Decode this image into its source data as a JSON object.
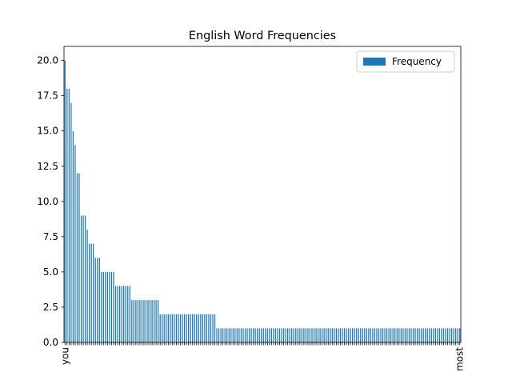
{
  "chart_data": {
    "type": "bar",
    "title": "English Word Frequencies",
    "categories": [
      "you",
      null,
      null,
      null,
      null,
      null,
      null,
      null,
      null,
      null,
      null,
      null,
      null,
      null,
      null,
      null,
      null,
      null,
      null,
      null,
      null,
      null,
      null,
      null,
      null,
      null,
      null,
      null,
      null,
      null,
      null,
      null,
      null,
      null,
      null,
      null,
      null,
      null,
      null,
      null,
      null,
      null,
      null,
      null,
      null,
      null,
      null,
      null,
      null,
      null,
      null,
      null,
      null,
      null,
      null,
      null,
      null,
      null,
      null,
      null,
      null,
      null,
      null,
      null,
      null,
      null,
      null,
      null,
      null,
      null,
      null,
      null,
      null,
      null,
      null,
      null,
      null,
      null,
      null,
      null,
      null,
      null,
      null,
      null,
      null,
      null,
      null,
      null,
      null,
      null,
      null,
      null,
      null,
      null,
      null,
      null,
      null,
      null,
      null,
      null,
      null,
      null,
      null,
      null,
      null,
      null,
      null,
      null,
      null,
      null,
      null,
      null,
      null,
      null,
      null,
      null,
      null,
      null,
      null,
      null,
      null,
      null,
      null,
      null,
      null,
      null,
      null,
      null,
      null,
      null,
      null,
      null,
      null,
      null,
      null,
      null,
      null,
      null,
      null,
      null,
      null,
      null,
      null,
      null,
      null,
      null,
      null,
      null,
      null,
      null,
      null,
      null,
      null,
      null,
      null,
      null,
      null,
      null,
      null,
      null,
      null,
      null,
      null,
      null,
      null,
      null,
      null,
      null,
      null,
      null,
      null,
      null,
      null,
      null,
      null,
      null,
      null,
      null,
      null,
      null,
      null,
      null,
      null,
      null,
      null,
      null,
      null,
      null,
      null,
      null,
      null,
      null,
      null,
      null,
      null,
      "most"
    ],
    "series": [
      {
        "name": "Frequency",
        "color": "#1f77b4",
        "values": [
          20,
          18,
          18,
          17,
          15,
          14,
          12,
          12,
          9,
          9,
          9,
          8,
          7,
          7,
          7,
          6,
          6,
          6,
          5,
          5,
          5,
          5,
          5,
          5,
          5,
          4,
          4,
          4,
          4,
          4,
          4,
          4,
          4,
          3,
          3,
          3,
          3,
          3,
          3,
          3,
          3,
          3,
          3,
          3,
          3,
          3,
          3,
          2,
          2,
          2,
          2,
          2,
          2,
          2,
          2,
          2,
          2,
          2,
          2,
          2,
          2,
          2,
          2,
          2,
          2,
          2,
          2,
          2,
          2,
          2,
          2,
          2,
          2,
          2,
          2,
          1,
          1,
          1,
          1,
          1,
          1,
          1,
          1,
          1,
          1,
          1,
          1,
          1,
          1,
          1,
          1,
          1,
          1,
          1,
          1,
          1,
          1,
          1,
          1,
          1,
          1,
          1,
          1,
          1,
          1,
          1,
          1,
          1,
          1,
          1,
          1,
          1,
          1,
          1,
          1,
          1,
          1,
          1,
          1,
          1,
          1,
          1,
          1,
          1,
          1,
          1,
          1,
          1,
          1,
          1,
          1,
          1,
          1,
          1,
          1,
          1,
          1,
          1,
          1,
          1,
          1,
          1,
          1,
          1,
          1,
          1,
          1,
          1,
          1,
          1,
          1,
          1,
          1,
          1,
          1,
          1,
          1,
          1,
          1,
          1,
          1,
          1,
          1,
          1,
          1,
          1,
          1,
          1,
          1,
          1,
          1,
          1,
          1,
          1,
          1,
          1,
          1,
          1,
          1,
          1,
          1,
          1,
          1,
          1,
          1,
          1,
          1,
          1,
          1,
          1,
          1,
          1,
          1,
          1,
          1,
          1
        ]
      }
    ],
    "ylim": [
      0,
      21
    ],
    "yticks": [
      {
        "value": 0,
        "label": "0.0"
      },
      {
        "value": 2.5,
        "label": "2.5"
      },
      {
        "value": 5,
        "label": "5.0"
      },
      {
        "value": 7.5,
        "label": "7.5"
      },
      {
        "value": 10,
        "label": "10.0"
      },
      {
        "value": 12.5,
        "label": "12.5"
      },
      {
        "value": 15,
        "label": "15.0"
      },
      {
        "value": 17.5,
        "label": "17.5"
      },
      {
        "value": 20,
        "label": "20.0"
      }
    ],
    "legend": "upper right"
  }
}
